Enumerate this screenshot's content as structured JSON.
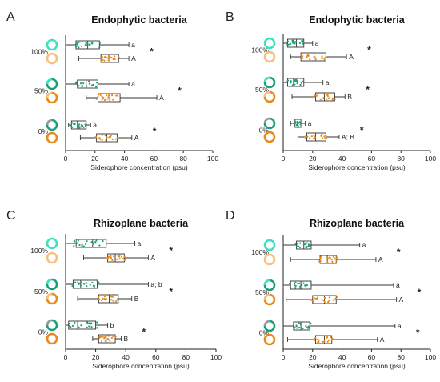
{
  "figure": {
    "x_axis_label": "Siderophore concentration (psu)",
    "x_ticks": [
      0,
      20,
      40,
      60,
      80,
      100
    ],
    "xlim": [
      0,
      100
    ],
    "colors": {
      "teal_light": "#3de0c0",
      "teal_dark": "#1a9e7a",
      "orange_light": "#f5c07a",
      "orange_dark": "#e88a1a",
      "gray": "#9a9a9a",
      "box": "#333333"
    }
  },
  "chart_data": [
    {
      "type": "box",
      "panel": "A",
      "title": "Endophytic bacteria",
      "groups": [
        {
          "label": "100%",
          "star": "*",
          "rows": [
            {
              "series": "teal",
              "min": 0,
              "q1": 7,
              "median": 15,
              "q3": 23,
              "max": 43,
              "letter": "a"
            },
            {
              "series": "orange",
              "min": 9,
              "q1": 24,
              "median": 30,
              "q3": 36,
              "max": 43,
              "letter": "A"
            }
          ]
        },
        {
          "label": "50%",
          "star": "*",
          "rows": [
            {
              "series": "teal",
              "min": 0,
              "q1": 8,
              "median": 14,
              "q3": 22,
              "max": 43,
              "letter": "a"
            },
            {
              "series": "orange",
              "min": 14,
              "q1": 22,
              "median": 30,
              "q3": 37,
              "max": 62,
              "letter": "A"
            }
          ]
        },
        {
          "label": "0%",
          "star": "*",
          "rows": [
            {
              "series": "teal",
              "min": 2,
              "q1": 4,
              "median": 8,
              "q3": 14,
              "max": 17,
              "letter": "a"
            },
            {
              "series": "orange",
              "min": 10,
              "q1": 21,
              "median": 28,
              "q3": 35,
              "max": 45,
              "letter": "A"
            }
          ]
        }
      ]
    },
    {
      "type": "box",
      "panel": "B",
      "title": "Endophytic bacteria",
      "groups": [
        {
          "label": "100%",
          "star": "*",
          "rows": [
            {
              "series": "teal",
              "min": 0,
              "q1": 3,
              "median": 9,
              "q3": 14,
              "max": 20,
              "letter": "a"
            },
            {
              "series": "orange",
              "min": 5,
              "q1": 12,
              "median": 21,
              "q3": 29,
              "max": 43,
              "letter": "A"
            }
          ]
        },
        {
          "label": "50%",
          "star": "*",
          "rows": [
            {
              "series": "teal",
              "min": 0,
              "q1": 3,
              "median": 7,
              "q3": 14,
              "max": 27,
              "letter": "a"
            },
            {
              "series": "orange",
              "min": 6,
              "q1": 22,
              "median": 28,
              "q3": 35,
              "max": 42,
              "letter": "B"
            }
          ]
        },
        {
          "label": "0%",
          "star": "*",
          "rows": [
            {
              "series": "teal",
              "min": 5,
              "q1": 8,
              "median": 10,
              "q3": 12,
              "max": 15,
              "letter": "a"
            },
            {
              "series": "orange",
              "min": 10,
              "q1": 16,
              "median": 22,
              "q3": 29,
              "max": 38,
              "letter": "A; B"
            }
          ]
        }
      ]
    },
    {
      "type": "box",
      "panel": "C",
      "title": "Rhizoplane bacteria",
      "groups": [
        {
          "label": "100%",
          "star": "*",
          "rows": [
            {
              "series": "teal",
              "min": 0,
              "q1": 7,
              "median": 18,
              "q3": 27,
              "max": 46,
              "letter": "a"
            },
            {
              "series": "orange",
              "min": 12,
              "q1": 28,
              "median": 33,
              "q3": 39,
              "max": 55,
              "letter": "A"
            }
          ]
        },
        {
          "label": "50%",
          "star": "*",
          "rows": [
            {
              "series": "teal",
              "min": 0,
              "q1": 5,
              "median": 10,
              "q3": 21,
              "max": 55,
              "letter": "a; b"
            },
            {
              "series": "orange",
              "min": 8,
              "q1": 22,
              "median": 29,
              "q3": 35,
              "max": 44,
              "letter": "B"
            }
          ]
        },
        {
          "label": "0%",
          "star": "*",
          "rows": [
            {
              "series": "teal",
              "min": 0,
              "q1": 2,
              "median": 8,
              "q3": 20,
              "max": 28,
              "letter": "b"
            },
            {
              "series": "orange",
              "min": 18,
              "q1": 22,
              "median": 27,
              "q3": 33,
              "max": 37,
              "letter": "B"
            }
          ]
        }
      ]
    },
    {
      "type": "box",
      "panel": "D",
      "title": "Rhizoplane bacteria",
      "groups": [
        {
          "label": "100%",
          "star": "*",
          "rows": [
            {
              "series": "teal",
              "min": 0,
              "q1": 9,
              "median": 14,
              "q3": 19,
              "max": 52,
              "letter": "a"
            },
            {
              "series": "orange",
              "min": 5,
              "q1": 25,
              "median": 30,
              "q3": 36,
              "max": 63,
              "letter": "A"
            }
          ]
        },
        {
          "label": "50%",
          "star": "*",
          "rows": [
            {
              "series": "teal",
              "min": 0,
              "q1": 5,
              "median": 12,
              "q3": 19,
              "max": 75,
              "letter": "a"
            },
            {
              "series": "orange",
              "min": 2,
              "q1": 20,
              "median": 28,
              "q3": 36,
              "max": 77,
              "letter": "A"
            }
          ]
        },
        {
          "label": "0%",
          "star": "*",
          "rows": [
            {
              "series": "teal",
              "min": 0,
              "q1": 7,
              "median": 12,
              "q3": 18,
              "max": 76,
              "letter": "a"
            },
            {
              "series": "orange",
              "min": 3,
              "q1": 22,
              "median": 28,
              "q3": 33,
              "max": 64,
              "letter": "A"
            }
          ]
        }
      ]
    }
  ]
}
